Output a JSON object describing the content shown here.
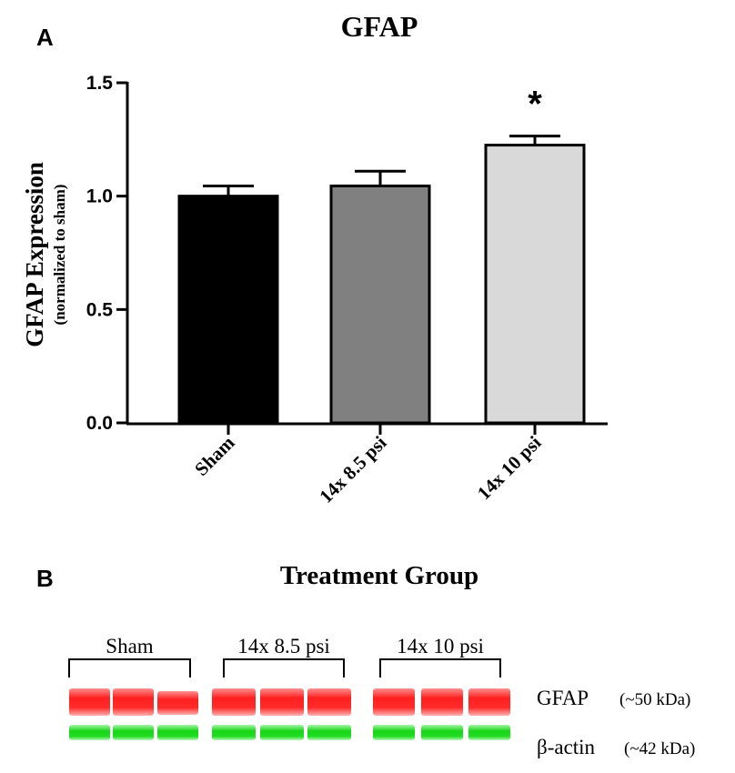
{
  "panels": {
    "a_label": "A",
    "b_label": "B"
  },
  "chart_data": {
    "type": "bar",
    "title": "GFAP",
    "ylabel": "GFAP Expression",
    "ylabel_sub": "(normalized to sham)",
    "xlabel": "Treatment Group",
    "categories": [
      "Sham",
      "14x 8.5 psi",
      "14x 10 psi"
    ],
    "values": [
      1.0,
      1.045,
      1.225
    ],
    "errors": [
      0.045,
      0.065,
      0.04
    ],
    "colors": [
      "#000000",
      "#808080",
      "#d9d9d9"
    ],
    "significance": [
      "",
      "",
      "*"
    ],
    "ylim": [
      0,
      1.5
    ],
    "yticks": [
      "0.0",
      "0.5",
      "1.0",
      "1.5"
    ],
    "ytick_values": [
      0,
      0.5,
      1.0,
      1.5
    ]
  },
  "blot": {
    "groups": [
      "Sham",
      "14x 8.5 psi",
      "14x 10 psi"
    ],
    "bands": [
      {
        "name": "GFAP",
        "size": "(~50 kDa)",
        "color": "#ff2a2a"
      },
      {
        "name": "β-actin",
        "size": "(~42 kDa)",
        "color": "#22dd22"
      }
    ]
  }
}
